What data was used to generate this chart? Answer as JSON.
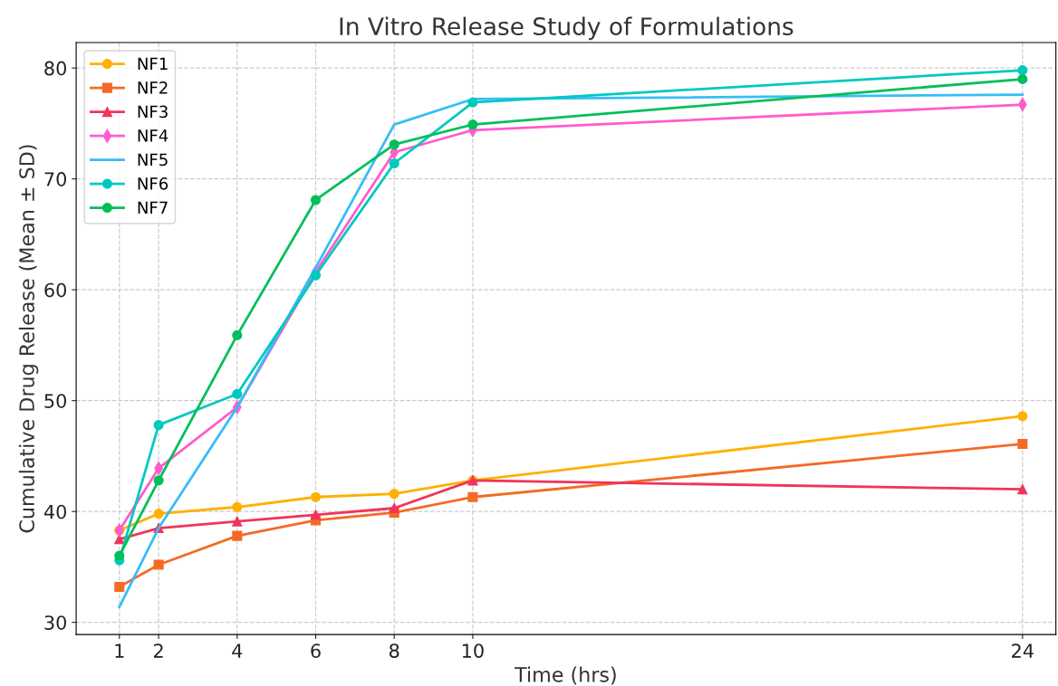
{
  "chart_data": {
    "type": "line",
    "title": "In Vitro Release Study of Formulations",
    "xlabel": "Time (hrs)",
    "ylabel": "Cumulative Drug Release (Mean ± SD)",
    "x": [
      1,
      2,
      4,
      6,
      8,
      10,
      24
    ],
    "xlim": [
      -0.1,
      24.85
    ],
    "ylim": [
      28.9,
      82.3
    ],
    "xticks": [
      1,
      2,
      4,
      6,
      8,
      10,
      24
    ],
    "yticks": [
      30,
      40,
      50,
      60,
      70,
      80
    ],
    "grid": true,
    "legend": "top left",
    "line_style": "solid",
    "series": [
      {
        "name": "NF1",
        "color": "#ffb000",
        "marker": "circle",
        "values": [
          38.3,
          39.8,
          40.4,
          41.3,
          41.6,
          42.8,
          48.6
        ]
      },
      {
        "name": "NF2",
        "color": "#f46a25",
        "marker": "square",
        "values": [
          33.2,
          35.2,
          37.8,
          39.2,
          39.9,
          41.3,
          46.1
        ]
      },
      {
        "name": "NF3",
        "color": "#f2335a",
        "marker": "triangle",
        "values": [
          37.5,
          38.5,
          39.1,
          39.7,
          40.3,
          42.8,
          42.0
        ]
      },
      {
        "name": "NF4",
        "color": "#ff5ccd",
        "marker": "diamond",
        "values": [
          38.3,
          43.9,
          49.4,
          61.6,
          72.4,
          74.4,
          76.7
        ]
      },
      {
        "name": "NF5",
        "color": "#36bdf7",
        "marker": "none",
        "values": [
          31.4,
          38.5,
          49.4,
          62.0,
          74.9,
          77.2,
          77.6
        ]
      },
      {
        "name": "NF6",
        "color": "#00c9c0",
        "marker": "circle",
        "values": [
          35.6,
          47.8,
          50.6,
          61.3,
          71.4,
          76.9,
          79.8
        ]
      },
      {
        "name": "NF7",
        "color": "#00bf5a",
        "marker": "circle",
        "values": [
          36.0,
          42.8,
          55.9,
          68.1,
          73.1,
          74.9,
          79.0
        ]
      }
    ]
  }
}
